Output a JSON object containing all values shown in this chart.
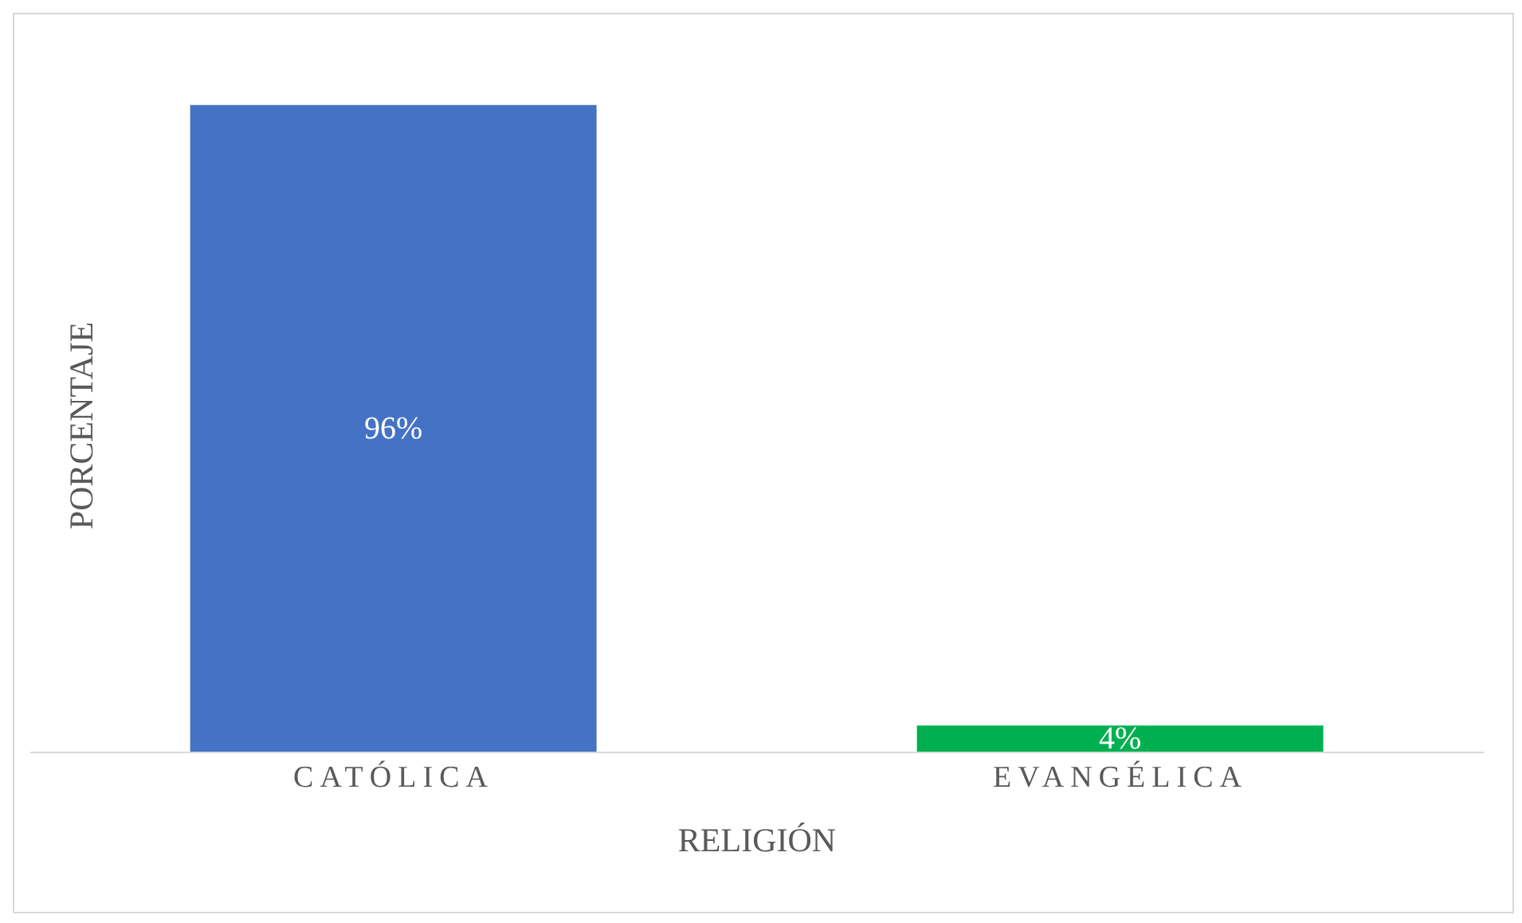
{
  "chart_data": {
    "type": "bar",
    "xlabel": "RELIGIÓN",
    "ylabel": "PORCENTAJE",
    "categories": [
      "CATÓLICA",
      "EVANGÉLICA"
    ],
    "values": [
      96,
      4
    ],
    "colors": [
      "#4472c4",
      "#00b050"
    ],
    "value_labels": [
      "96%",
      "4%"
    ]
  }
}
